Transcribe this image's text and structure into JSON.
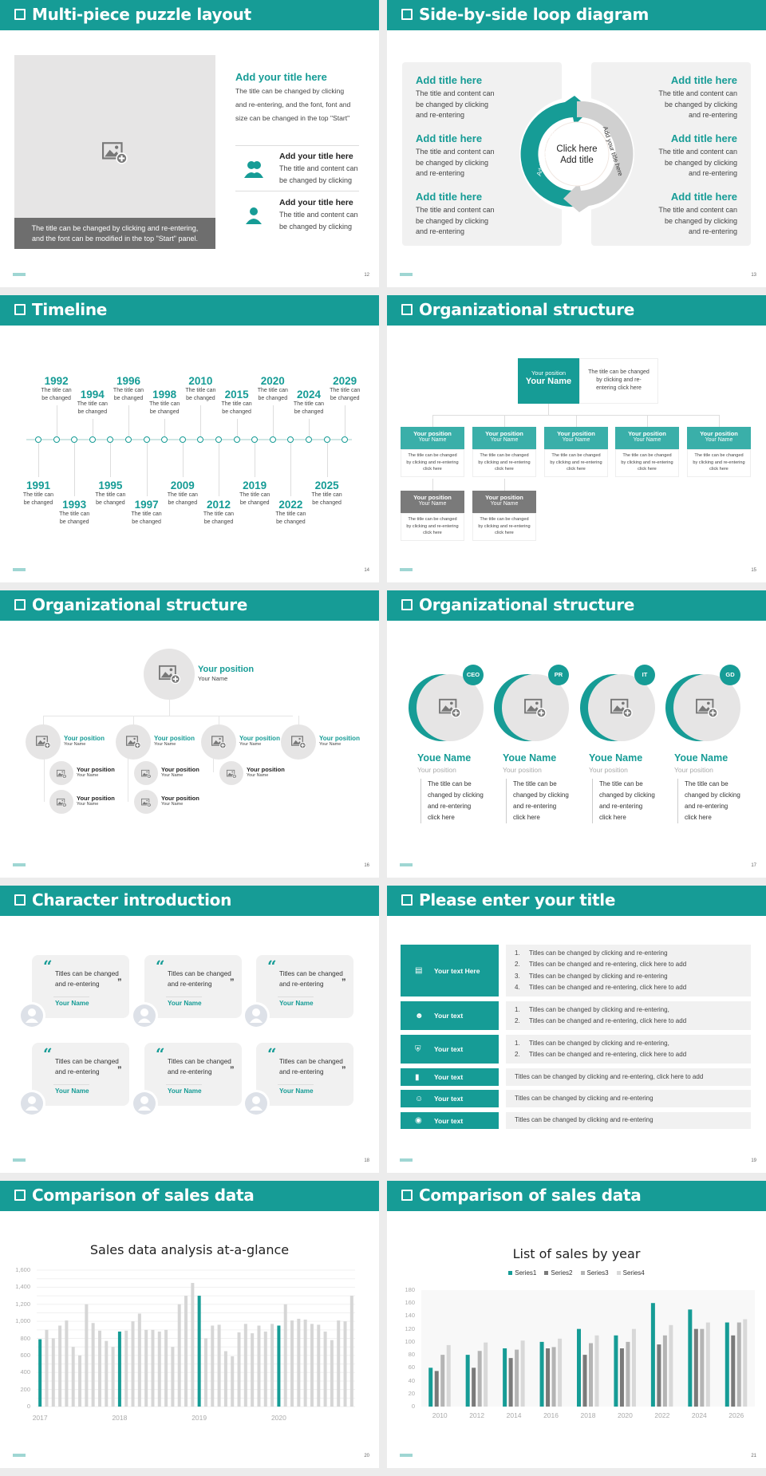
{
  "colors": {
    "accent": "#169c96",
    "gray": "#6e6e6e",
    "light": "#f1f1f1"
  },
  "slides": [
    {
      "title": "Multi-piece puzzle layout",
      "page": "12",
      "caption": [
        "The title can be changed by clicking and re-entering,",
        "and the font can be modified in the top \"Start\" panel."
      ],
      "heading": "Add your title here",
      "paragraph": [
        "The title can be changed by clicking",
        "and re-entering, and the font, font and",
        "size can be changed in the top \"Start\""
      ],
      "items": [
        {
          "icon": "users-icon",
          "title": "Add your title here",
          "text": [
            "The title and content can",
            "be changed by clicking"
          ]
        },
        {
          "icon": "user-icon",
          "title": "Add your title here",
          "text": [
            "The title and content can",
            "be changed by clicking"
          ]
        }
      ]
    },
    {
      "title": "Side-by-side loop diagram",
      "page": "13",
      "blocks": [
        {
          "title": "Add title here",
          "text": [
            "The title and content can",
            "be changed by clicking",
            "and re-entering"
          ]
        }
      ],
      "center": [
        "Click here",
        "Add title"
      ],
      "arc_label": "Add your title here"
    },
    {
      "title": "Timeline",
      "page": "14",
      "caption": [
        "The title can",
        "be changed"
      ],
      "years": [
        "1991",
        "1992",
        "1993",
        "1994",
        "1995",
        "1996",
        "1997",
        "1998",
        "2009",
        "2010",
        "2012",
        "2015",
        "2019",
        "2020",
        "2022",
        "2024",
        "2025",
        "2029"
      ]
    },
    {
      "title": "Organizational structure",
      "page": "15",
      "top": {
        "position": "Your position",
        "name": "Your Name",
        "desc": [
          "The title can be changed",
          "by clicking and re-",
          "entering click here"
        ]
      },
      "node": {
        "position": "Your position",
        "name": "Your Name",
        "desc": [
          "The title can be changed",
          "by clicking and re-entering",
          "click here"
        ]
      }
    },
    {
      "title": "Organizational structure",
      "page": "16",
      "position": "Your position",
      "name": "Your Name"
    },
    {
      "title": "Organizational structure",
      "page": "17",
      "people": [
        {
          "badge": "CEO"
        },
        {
          "badge": "PR"
        },
        {
          "badge": "IT"
        },
        {
          "badge": "GD"
        }
      ],
      "name": "Youe Name",
      "position": "Your position",
      "desc": [
        "The title can be",
        "changed by clicking",
        "and re-entering",
        "click here"
      ]
    },
    {
      "title": "Character introduction",
      "page": "18",
      "quote": [
        "Titles can be changed",
        "and re-entering"
      ],
      "name": "Your Name"
    },
    {
      "title": "Please enter your title",
      "page": "19",
      "rows": [
        {
          "icon": "presentation-icon",
          "label": "Your text Here",
          "lines": [
            "Titles can be changed by clicking and re-entering",
            "Titles can be changed and re-entering, click here to add",
            "Titles can be changed by clicking and re-entering",
            "Titles can be changed and re-entering, click here to add"
          ],
          "numbered": true
        },
        {
          "icon": "user-settings-icon",
          "label": "Your text",
          "lines": [
            "Titles can be changed by clicking and re-entering,",
            "Titles can be changed and re-entering, click here to add"
          ],
          "numbered": true
        },
        {
          "icon": "shield-icon",
          "label": "Your text",
          "lines": [
            "Titles can be changed by clicking and re-entering,",
            "Titles can be changed and re-entering, click here to add"
          ],
          "numbered": true
        },
        {
          "icon": "bar-chart-icon",
          "label": "Your text",
          "lines": [
            "Titles can be changed by clicking and re-entering, click here to add"
          ],
          "numbered": false
        },
        {
          "icon": "team-icon",
          "label": "Your text",
          "lines": [
            "Titles can be changed by clicking and re-entering"
          ],
          "numbered": false
        },
        {
          "icon": "money-hand-icon",
          "label": "Your text",
          "lines": [
            "Titles can be changed by clicking and re-entering"
          ],
          "numbered": false
        }
      ]
    },
    {
      "title": "Comparison of sales data",
      "page": "20"
    },
    {
      "title": "Comparison of sales data",
      "page": "21"
    }
  ],
  "chart_data": [
    {
      "type": "bar",
      "title": "Sales data analysis at-a-glance",
      "ylim": [
        0,
        1600
      ],
      "yticks": [
        "0",
        "200",
        "400",
        "600",
        "800",
        "1,000",
        "1,200",
        "1,400",
        "1,600"
      ],
      "xticks": [
        "2017",
        "2018",
        "2019",
        "2020"
      ],
      "grid": true,
      "highlight_color": "#169c96",
      "bar_color": "#d6d6d6",
      "values": [
        790,
        900,
        800,
        950,
        1010,
        700,
        600,
        1200,
        980,
        890,
        770,
        700,
        880,
        890,
        1000,
        1090,
        900,
        900,
        880,
        900,
        700,
        1200,
        1300,
        1450,
        1300,
        800,
        950,
        960,
        650,
        590,
        870,
        970,
        860,
        950,
        880,
        970,
        950,
        1200,
        1010,
        1030,
        1020,
        970,
        960,
        880,
        780,
        1010,
        1000,
        1300
      ]
    },
    {
      "type": "bar",
      "title": "List of sales by year",
      "ylim": [
        0,
        180
      ],
      "yticks": [
        "0",
        "20",
        "40",
        "60",
        "80",
        "100",
        "120",
        "140",
        "160",
        "180"
      ],
      "categories": [
        "2010",
        "2012",
        "2014",
        "2016",
        "2018",
        "2020",
        "2022",
        "2024",
        "2026"
      ],
      "legend": "top",
      "series": [
        {
          "name": "Series1",
          "color": "#169c96",
          "values": [
            60,
            80,
            90,
            100,
            120,
            110,
            160,
            150,
            130
          ]
        },
        {
          "name": "Series2",
          "color": "#7a7a7a",
          "values": [
            55,
            60,
            75,
            90,
            80,
            90,
            96,
            120,
            110
          ]
        },
        {
          "name": "Series3",
          "color": "#b4b4b4",
          "values": [
            80,
            86,
            88,
            92,
            98,
            100,
            110,
            120,
            130
          ]
        },
        {
          "name": "Series4",
          "color": "#d8d8d8",
          "values": [
            95,
            99,
            102,
            105,
            110,
            120,
            126,
            130,
            135
          ]
        }
      ]
    }
  ]
}
